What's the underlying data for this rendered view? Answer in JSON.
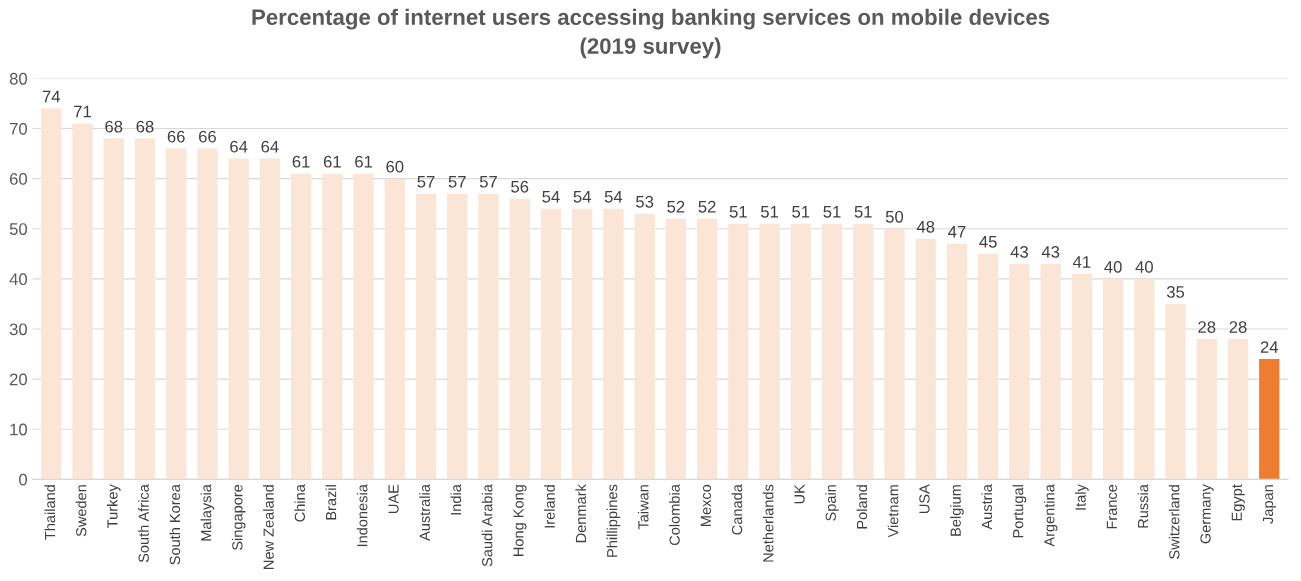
{
  "chart_data": {
    "type": "bar",
    "title": "Percentage of internet users accessing banking services on mobile devices\n(2019 survey)",
    "categories": [
      "Thailand",
      "Sweden",
      "Turkey",
      "South Africa",
      "South Korea",
      "Malaysia",
      "Singapore",
      "New Zealand",
      "China",
      "Brazil",
      "Indonesia",
      "UAE",
      "Australia",
      "India",
      "Saudi Arabia",
      "Hong Kong",
      "Ireland",
      "Denmark",
      "Phillippines",
      "Taiwan",
      "Colombia",
      "Mexco",
      "Canada",
      "Netherlands",
      "UK",
      "Spain",
      "Poland",
      "Vietnam",
      "USA",
      "Belgium",
      "Austria",
      "Portugal",
      "Argentina",
      "Italy",
      "France",
      "Russia",
      "Switzerland",
      "Germany",
      "Egypt",
      "Japan"
    ],
    "values": [
      74,
      71,
      68,
      68,
      66,
      66,
      64,
      64,
      61,
      61,
      61,
      60,
      57,
      57,
      57,
      56,
      54,
      54,
      54,
      53,
      52,
      52,
      51,
      51,
      51,
      51,
      51,
      50,
      48,
      47,
      45,
      43,
      43,
      41,
      40,
      40,
      35,
      28,
      28,
      24
    ],
    "colors": [
      "#fbe5d6",
      "#fbe5d6",
      "#fbe5d6",
      "#fbe5d6",
      "#fbe5d6",
      "#fbe5d6",
      "#fbe5d6",
      "#fbe5d6",
      "#fbe5d6",
      "#fbe5d6",
      "#fbe5d6",
      "#fbe5d6",
      "#fbe5d6",
      "#fbe5d6",
      "#fbe5d6",
      "#fbe5d6",
      "#fbe5d6",
      "#fbe5d6",
      "#fbe5d6",
      "#fbe5d6",
      "#fbe5d6",
      "#fbe5d6",
      "#fbe5d6",
      "#fbe5d6",
      "#fbe5d6",
      "#fbe5d6",
      "#fbe5d6",
      "#fbe5d6",
      "#fbe5d6",
      "#fbe5d6",
      "#fbe5d6",
      "#fbe5d6",
      "#fbe5d6",
      "#fbe5d6",
      "#fbe5d6",
      "#fbe5d6",
      "#fbe5d6",
      "#fbe5d6",
      "#fbe5d6",
      "#ed7d31"
    ],
    "ylim": [
      0,
      80
    ],
    "yticks": [
      0,
      10,
      20,
      30,
      40,
      50,
      60,
      70,
      80
    ],
    "grid": "y",
    "data_labels": true
  }
}
